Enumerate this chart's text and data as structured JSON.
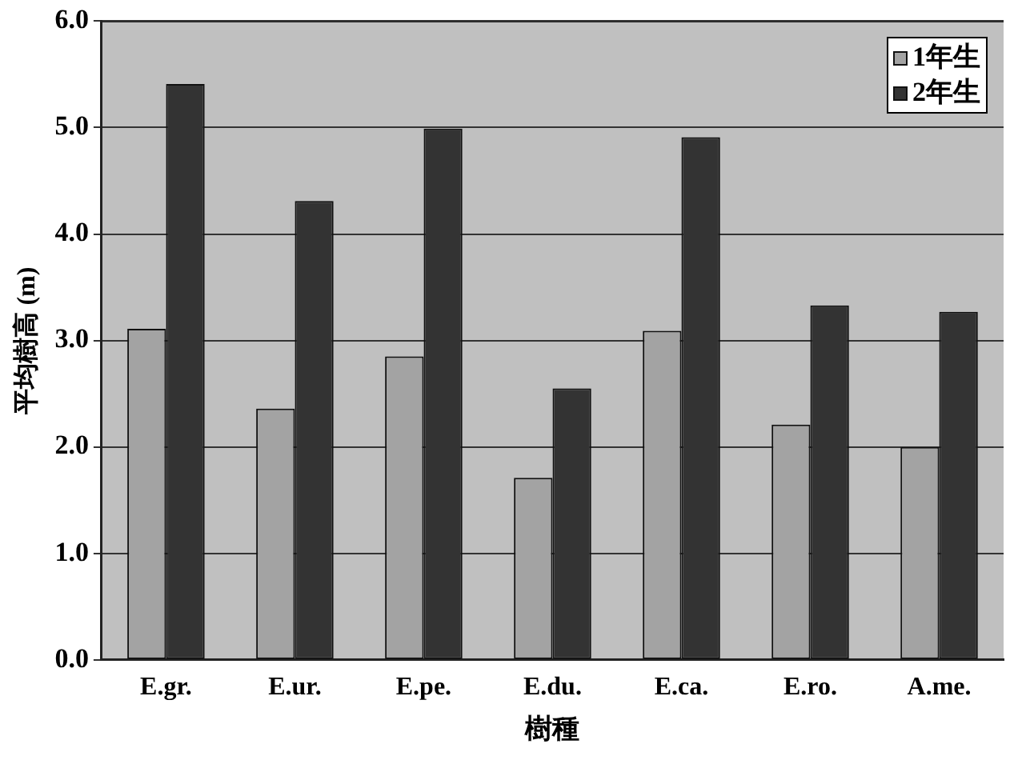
{
  "chart_data": {
    "type": "bar",
    "xlabel": "樹種",
    "ylabel": "平均樹高 (m)",
    "categories": [
      "E.gr.",
      "E.ur.",
      "E.pe.",
      "E.du.",
      "E.ca.",
      "E.ro.",
      "A.me."
    ],
    "series": [
      {
        "name": "1年生",
        "color": "#a3a3a3",
        "values": [
          3.11,
          2.36,
          2.85,
          1.71,
          3.09,
          2.21,
          2.0
        ]
      },
      {
        "name": "2年生",
        "color": "#333333",
        "values": [
          5.41,
          4.31,
          4.99,
          2.55,
          4.91,
          3.33,
          3.27
        ]
      }
    ],
    "ylim": [
      0,
      6
    ],
    "yticks": [
      {
        "value": 0,
        "label": "0.0"
      },
      {
        "value": 1,
        "label": "1.0"
      },
      {
        "value": 2,
        "label": "2.0"
      },
      {
        "value": 3,
        "label": "3.0"
      },
      {
        "value": 4,
        "label": "4.0"
      },
      {
        "value": 5,
        "label": "5.0"
      },
      {
        "value": 6,
        "label": "6.0"
      }
    ],
    "grid": "y",
    "legend": "top right"
  }
}
